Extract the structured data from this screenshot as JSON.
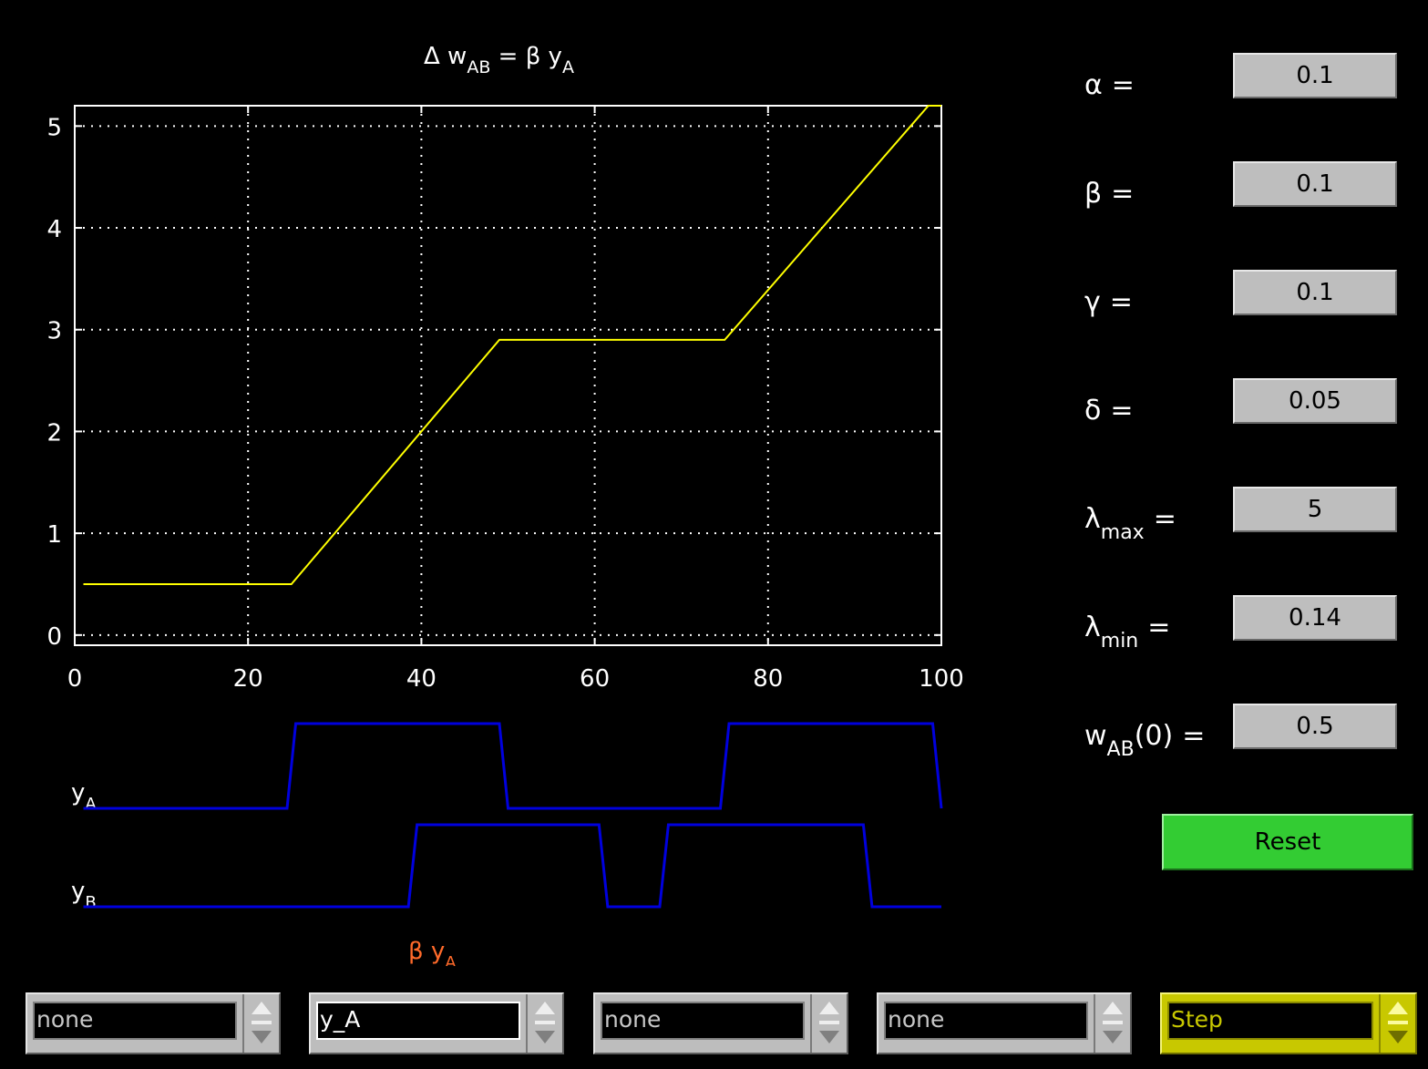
{
  "chart_data": {
    "type": "line",
    "title": "Δ w_AB = β y_A",
    "title_parts": {
      "delta": "Δ w",
      "sub1": "AB",
      "eq": " = β y",
      "sub2": "A"
    },
    "xlim": [
      0,
      100
    ],
    "ylim": [
      -0.1,
      5.2
    ],
    "x_ticks": [
      "0",
      "20",
      "40",
      "60",
      "80",
      "100"
    ],
    "y_ticks": [
      "0",
      "1",
      "2",
      "3",
      "4",
      "5"
    ],
    "grid": true,
    "series": [
      {
        "color": "#ffff00",
        "x": [
          1,
          25,
          49,
          75,
          98.5,
          100
        ],
        "y": [
          0.5,
          0.5,
          2.9,
          2.9,
          5.2,
          5.2
        ]
      }
    ]
  },
  "signals": {
    "yA": {
      "label": "y",
      "sub": "A",
      "color": "#0000dd",
      "high_intervals": [
        [
          25.5,
          49
        ],
        [
          75.5,
          99
        ]
      ],
      "x_end": 100
    },
    "yB": {
      "label": "y",
      "sub": "B",
      "color": "#0000dd",
      "high_intervals": [
        [
          39.5,
          60.5
        ],
        [
          68.5,
          91
        ]
      ],
      "x_end": 100
    },
    "annotation": {
      "text": "β y",
      "sub": "A",
      "color": "#ff6a2a"
    }
  },
  "params": [
    {
      "label": "α",
      "sub": "",
      "tail": "",
      "value": "0.1"
    },
    {
      "label": "β",
      "sub": "",
      "tail": "",
      "value": "0.1"
    },
    {
      "label": "γ",
      "sub": "",
      "tail": "",
      "value": "0.1"
    },
    {
      "label": "δ",
      "sub": "",
      "tail": "",
      "value": "0.05"
    },
    {
      "label": "λ",
      "sub": "max",
      "tail": "",
      "value": "5"
    },
    {
      "label": "λ",
      "sub": "min",
      "tail": "",
      "value": "0.14"
    },
    {
      "label": "w",
      "sub": "AB",
      "tail": "(0)",
      "value": "0.5"
    }
  ],
  "reset_label": "Reset",
  "selectors": [
    {
      "value": "none"
    },
    {
      "value": "y_A"
    },
    {
      "value": "none"
    },
    {
      "value": "none"
    },
    {
      "value": "Step"
    }
  ],
  "colors": {
    "plot_line": "#ffff00",
    "signal": "#0000dd",
    "reset": "#33cc33",
    "active_selector": "#c8c800"
  }
}
